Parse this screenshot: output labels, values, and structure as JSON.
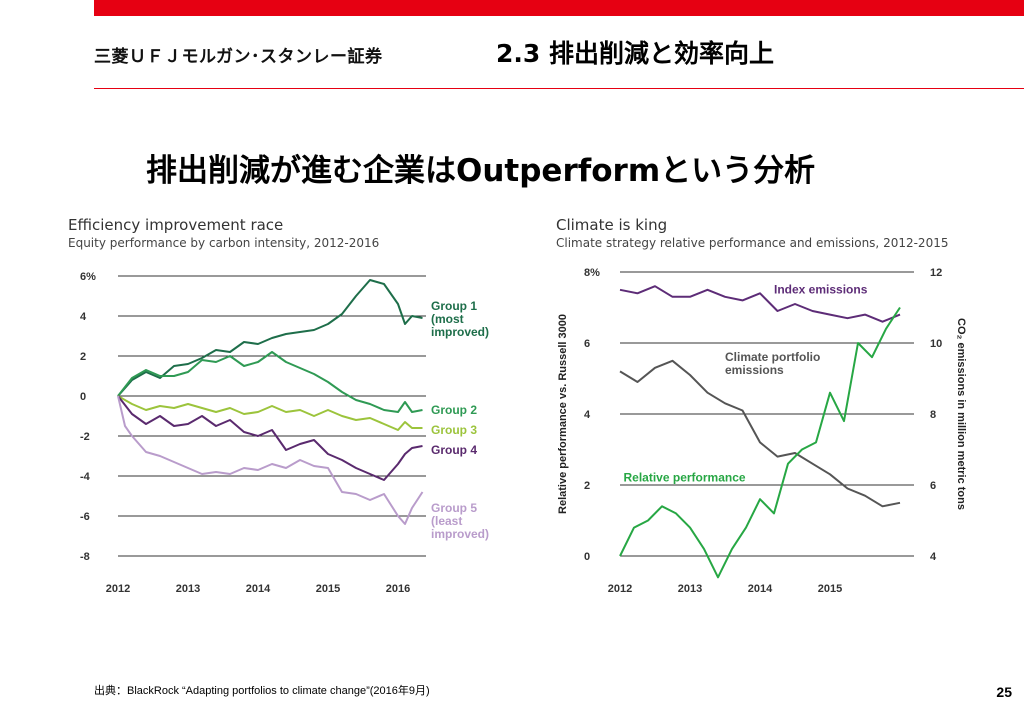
{
  "header": {
    "logo": "三菱ＵＦＪモルガン･スタンレー証券",
    "section_title": "2.3  排出削減と効率向上",
    "headline": "排出削減が進む企業はOutperformという分析"
  },
  "colors": {
    "brand_red": "#e60012",
    "group1": "#1e6e4a",
    "group2": "#2f9a54",
    "group3": "#9cc43c",
    "group4": "#5a2a6e",
    "group5": "#b99ccb",
    "index_emissions": "#5d2c77",
    "climate_emissions": "#555555",
    "relative_performance": "#27a744"
  },
  "chart_data": [
    {
      "type": "line",
      "title": "Efficiency improvement race",
      "subtitle": "Equity performance by carbon intensity, 2012-2016",
      "xlabel": "",
      "ylabel": "",
      "xlim": [
        2012,
        2016.4
      ],
      "ylim": [
        -8,
        6
      ],
      "x_ticks": [
        2012,
        2013,
        2014,
        2015,
        2016
      ],
      "y_ticks": [
        "6%",
        "4",
        "2",
        "0",
        "-2",
        "-4",
        "-6",
        "-8"
      ],
      "y_tick_values": [
        6,
        4,
        2,
        0,
        -2,
        -4,
        -6,
        -8
      ],
      "grid": "horizontal",
      "series": [
        {
          "name": "Group 1 (most improved)",
          "label_lines": [
            "Group 1",
            "(most",
            "improved)"
          ],
          "label_y": 4.5,
          "x": [
            2012.0,
            2012.2,
            2012.4,
            2012.6,
            2012.8,
            2013.0,
            2013.2,
            2013.4,
            2013.6,
            2013.8,
            2014.0,
            2014.2,
            2014.4,
            2014.6,
            2014.8,
            2015.0,
            2015.2,
            2015.4,
            2015.6,
            2015.8,
            2016.0,
            2016.1,
            2016.2,
            2016.35
          ],
          "values": [
            0.0,
            0.8,
            1.2,
            0.9,
            1.5,
            1.6,
            1.9,
            2.3,
            2.2,
            2.7,
            2.6,
            2.9,
            3.1,
            3.2,
            3.3,
            3.6,
            4.1,
            5.0,
            5.8,
            5.6,
            4.6,
            3.6,
            4.0,
            3.9
          ]
        },
        {
          "name": "Group 2",
          "label_lines": [
            "Group 2"
          ],
          "label_y": -0.7,
          "x": [
            2012.0,
            2012.2,
            2012.4,
            2012.6,
            2012.8,
            2013.0,
            2013.2,
            2013.4,
            2013.6,
            2013.8,
            2014.0,
            2014.2,
            2014.4,
            2014.6,
            2014.8,
            2015.0,
            2015.2,
            2015.4,
            2015.6,
            2015.8,
            2016.0,
            2016.1,
            2016.2,
            2016.35
          ],
          "values": [
            0.0,
            0.9,
            1.3,
            1.0,
            1.0,
            1.2,
            1.8,
            1.7,
            2.0,
            1.5,
            1.7,
            2.2,
            1.7,
            1.4,
            1.1,
            0.7,
            0.2,
            -0.2,
            -0.4,
            -0.7,
            -0.8,
            -0.3,
            -0.8,
            -0.7
          ]
        },
        {
          "name": "Group 3",
          "label_lines": [
            "Group 3"
          ],
          "label_y": -1.7,
          "x": [
            2012.0,
            2012.2,
            2012.4,
            2012.6,
            2012.8,
            2013.0,
            2013.2,
            2013.4,
            2013.6,
            2013.8,
            2014.0,
            2014.2,
            2014.4,
            2014.6,
            2014.8,
            2015.0,
            2015.2,
            2015.4,
            2015.6,
            2015.8,
            2016.0,
            2016.1,
            2016.2,
            2016.35
          ],
          "values": [
            0.0,
            -0.4,
            -0.7,
            -0.5,
            -0.6,
            -0.4,
            -0.6,
            -0.8,
            -0.6,
            -0.9,
            -0.8,
            -0.5,
            -0.8,
            -0.7,
            -1.0,
            -0.7,
            -1.0,
            -1.2,
            -1.1,
            -1.4,
            -1.7,
            -1.3,
            -1.6,
            -1.6
          ]
        },
        {
          "name": "Group 4",
          "label_lines": [
            "Group 4"
          ],
          "label_y": -2.7,
          "x": [
            2012.0,
            2012.2,
            2012.4,
            2012.6,
            2012.8,
            2013.0,
            2013.2,
            2013.4,
            2013.6,
            2013.8,
            2014.0,
            2014.2,
            2014.4,
            2014.6,
            2014.8,
            2015.0,
            2015.2,
            2015.4,
            2015.6,
            2015.8,
            2016.0,
            2016.1,
            2016.2,
            2016.35
          ],
          "values": [
            0.0,
            -0.9,
            -1.4,
            -1.0,
            -1.5,
            -1.4,
            -1.0,
            -1.5,
            -1.2,
            -1.8,
            -2.0,
            -1.7,
            -2.7,
            -2.4,
            -2.2,
            -2.9,
            -3.2,
            -3.6,
            -3.9,
            -4.2,
            -3.4,
            -2.9,
            -2.6,
            -2.5
          ]
        },
        {
          "name": "Group 5 (least improved)",
          "label_lines": [
            "Group 5",
            "(least",
            "improved)"
          ],
          "label_y": -5.6,
          "x": [
            2012.0,
            2012.1,
            2012.2,
            2012.4,
            2012.6,
            2012.8,
            2013.0,
            2013.2,
            2013.4,
            2013.6,
            2013.8,
            2014.0,
            2014.2,
            2014.4,
            2014.6,
            2014.8,
            2015.0,
            2015.2,
            2015.4,
            2015.6,
            2015.8,
            2016.0,
            2016.1,
            2016.2,
            2016.35
          ],
          "values": [
            0.0,
            -1.5,
            -2.0,
            -2.8,
            -3.0,
            -3.3,
            -3.6,
            -3.9,
            -3.8,
            -3.9,
            -3.6,
            -3.7,
            -3.4,
            -3.6,
            -3.2,
            -3.5,
            -3.6,
            -4.8,
            -4.9,
            -5.2,
            -4.9,
            -6.0,
            -6.4,
            -5.6,
            -4.8
          ]
        }
      ]
    },
    {
      "type": "line",
      "title": "Climate is king",
      "subtitle": "Climate strategy relative performance and emissions, 2012-2015",
      "xlabel": "",
      "ylabel": "Relative performance vs. Russell 3000",
      "y2label": "CO₂ emissions in million metric tons",
      "xlim": [
        2012,
        2016.2
      ],
      "ylim": [
        0,
        8
      ],
      "y2lim": [
        4,
        12
      ],
      "x_ticks": [
        2012,
        2013,
        2014,
        2015
      ],
      "y_ticks": [
        "8%",
        "6",
        "4",
        "2",
        "0"
      ],
      "y_tick_values": [
        8,
        6,
        4,
        2,
        0
      ],
      "y2_ticks": [
        "12",
        "10",
        "8",
        "6",
        "4"
      ],
      "y2_tick_values": [
        12,
        10,
        8,
        6,
        4
      ],
      "grid": "horizontal",
      "series": [
        {
          "name": "Index emissions",
          "axis": "right",
          "label_x": 2014.2,
          "label_y": 11.4,
          "x": [
            2012.0,
            2012.25,
            2012.5,
            2012.75,
            2013.0,
            2013.25,
            2013.5,
            2013.75,
            2014.0,
            2014.25,
            2014.5,
            2014.75,
            2015.0,
            2015.25,
            2015.5,
            2015.75,
            2016.0
          ],
          "values": [
            11.5,
            11.4,
            11.6,
            11.3,
            11.3,
            11.5,
            11.3,
            11.2,
            11.4,
            10.9,
            11.1,
            10.9,
            10.8,
            10.7,
            10.8,
            10.6,
            10.8
          ]
        },
        {
          "name": "Climate portfolio emissions",
          "axis": "right",
          "label_lines": [
            "Climate portfolio",
            "emissions"
          ],
          "label_x": 2013.5,
          "label_y": 9.5,
          "x": [
            2012.0,
            2012.25,
            2012.5,
            2012.75,
            2013.0,
            2013.25,
            2013.5,
            2013.75,
            2014.0,
            2014.25,
            2014.5,
            2014.75,
            2015.0,
            2015.25,
            2015.5,
            2015.75,
            2016.0
          ],
          "values": [
            9.2,
            8.9,
            9.3,
            9.5,
            9.1,
            8.6,
            8.3,
            8.1,
            7.2,
            6.8,
            6.9,
            6.6,
            6.3,
            5.9,
            5.7,
            5.4,
            5.5
          ]
        },
        {
          "name": "Relative performance",
          "axis": "left",
          "label_x": 2012.05,
          "label_y": 2.1,
          "x": [
            2012.0,
            2012.2,
            2012.4,
            2012.6,
            2012.8,
            2013.0,
            2013.2,
            2013.4,
            2013.6,
            2013.8,
            2014.0,
            2014.2,
            2014.4,
            2014.6,
            2014.8,
            2015.0,
            2015.2,
            2015.4,
            2015.6,
            2015.8,
            2016.0
          ],
          "values": [
            0.0,
            0.8,
            1.0,
            1.4,
            1.2,
            0.8,
            0.2,
            -0.6,
            0.2,
            0.8,
            1.6,
            1.2,
            2.6,
            3.0,
            3.2,
            4.6,
            3.8,
            6.0,
            5.6,
            6.4,
            7.0
          ]
        }
      ]
    }
  ],
  "footer": {
    "source": "出典：BlackRock “Adapting portfolios to climate change”(2016年9月)",
    "page_number": "25"
  }
}
